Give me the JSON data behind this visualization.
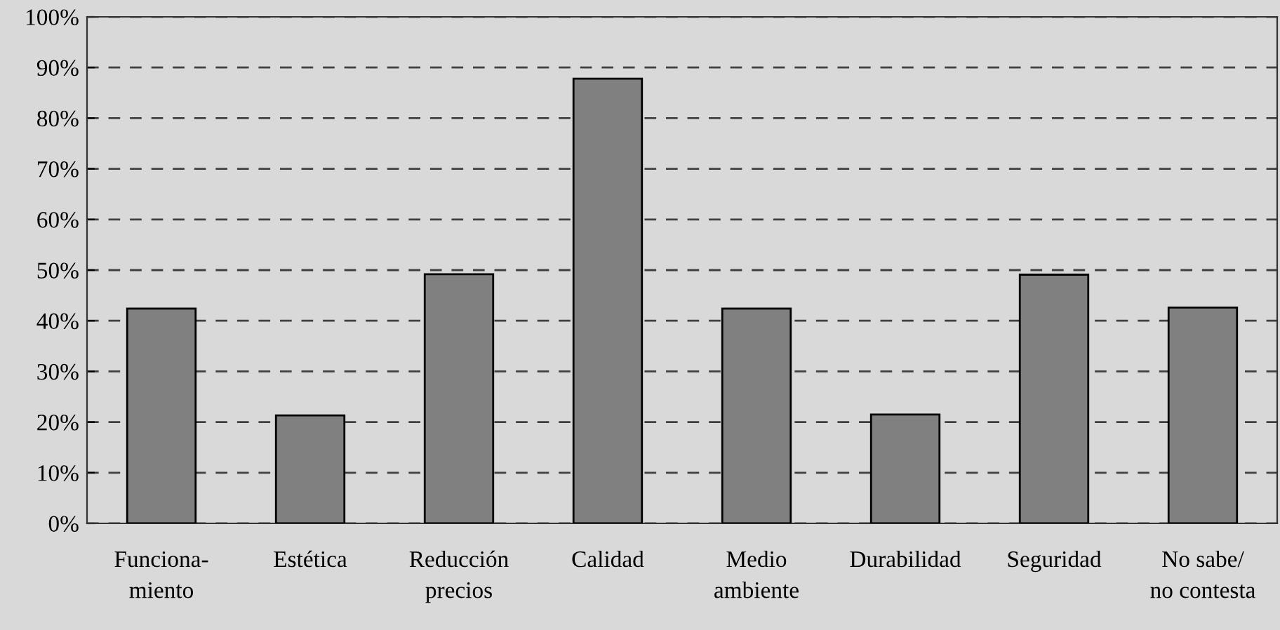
{
  "chart_data": {
    "type": "bar",
    "categories": [
      "Funciona-\nmiento",
      "Estética",
      "Reducción\nprecios",
      "Calidad",
      "Medio\nambiente",
      "Durabilidad",
      "Seguridad",
      "No sabe/\nno contesta"
    ],
    "values": [
      42.4,
      21.3,
      49.2,
      87.8,
      42.4,
      21.5,
      49.1,
      42.6
    ],
    "color": "#808080",
    "ylim": [
      0,
      100
    ],
    "yticks": [
      {
        "value": 0,
        "label": "0%"
      },
      {
        "value": 10,
        "label": "10%"
      },
      {
        "value": 20,
        "label": "20%"
      },
      {
        "value": 30,
        "label": "30%"
      },
      {
        "value": 40,
        "label": "40%"
      },
      {
        "value": 50,
        "label": "50%"
      },
      {
        "value": 60,
        "label": "60%"
      },
      {
        "value": 70,
        "label": "70%"
      },
      {
        "value": 80,
        "label": "80%"
      },
      {
        "value": 90,
        "label": "90%"
      },
      {
        "value": 100,
        "label": "100%"
      }
    ],
    "grid": "y"
  }
}
